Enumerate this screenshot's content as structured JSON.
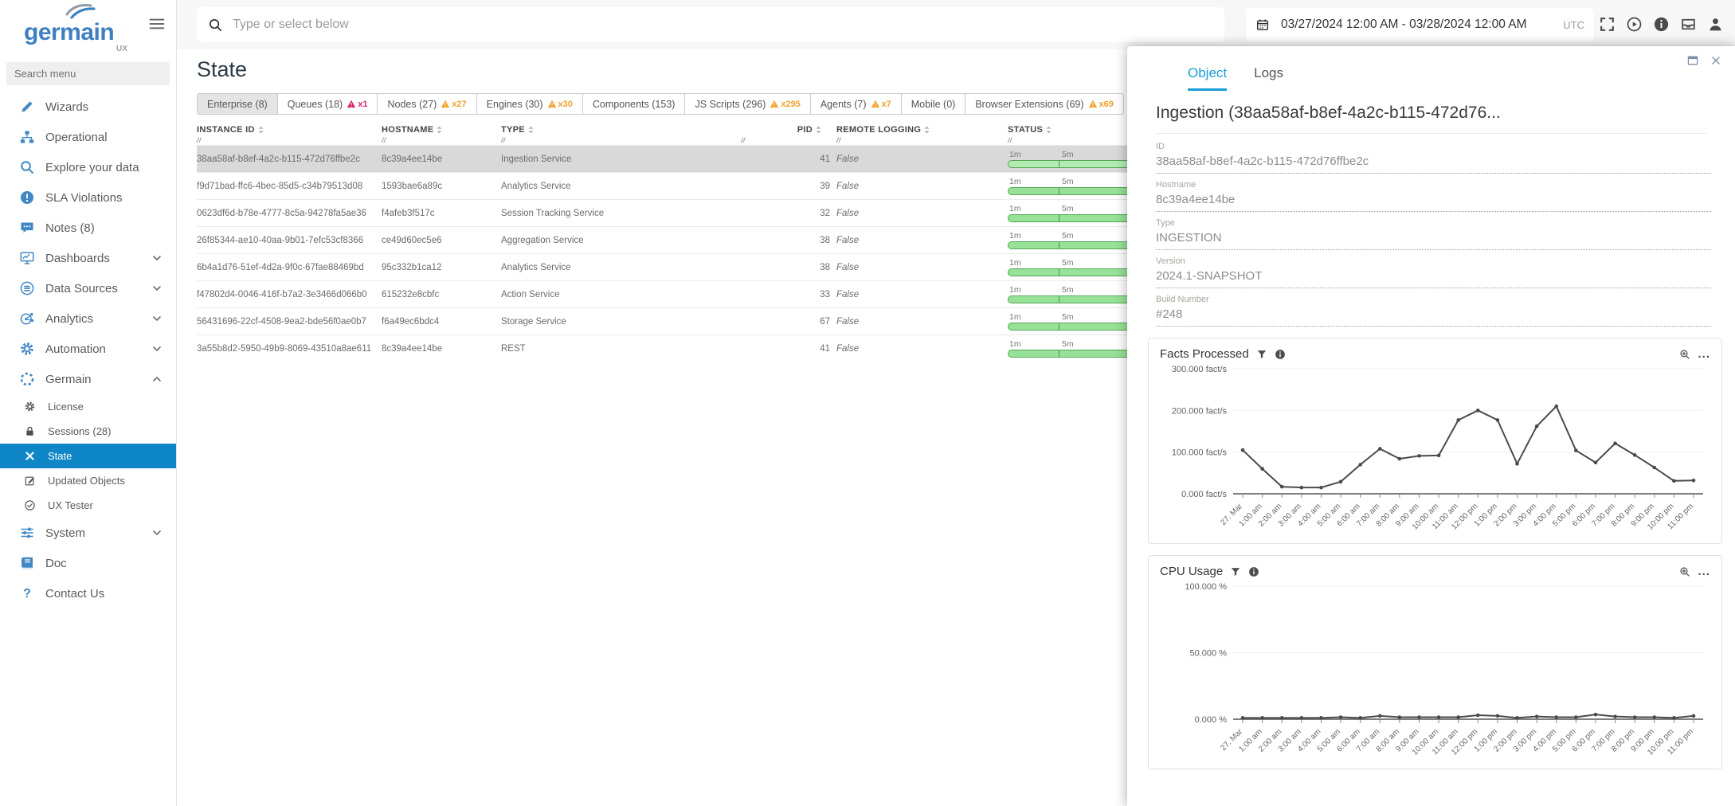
{
  "colors": {
    "accent": "#0f87c6",
    "panel_accent": "#1a9cd8",
    "sidebar_icon": "#4288c5",
    "warn_amber": "#f0a22e",
    "warn_crimson": "#d6256e",
    "bar_green_fill": "#97e297",
    "bar_green_border": "#55a555",
    "chart_line": "#4a4a4a"
  },
  "sidebar": {
    "logo_text": "germain",
    "logo_sub": "UX",
    "search_placeholder": "Search menu",
    "items": [
      {
        "label": "Wizards",
        "icon": "pencil-icon",
        "type": "parent"
      },
      {
        "label": "Operational",
        "icon": "sitemap-icon",
        "type": "parent"
      },
      {
        "label": "Explore your data",
        "icon": "search-icon",
        "type": "parent"
      },
      {
        "label": "SLA Violations",
        "icon": "alert-circle-icon",
        "type": "parent"
      },
      {
        "label": "Notes (8)",
        "icon": "chat-icon",
        "type": "parent"
      },
      {
        "label": "Dashboards",
        "icon": "monitor-icon",
        "type": "parent",
        "chevron": "down"
      },
      {
        "label": "Data Sources",
        "icon": "database-circle-icon",
        "type": "parent",
        "chevron": "down"
      },
      {
        "label": "Analytics",
        "icon": "nodes-icon",
        "type": "parent",
        "chevron": "down"
      },
      {
        "label": "Automation",
        "icon": "gear-icon",
        "type": "parent",
        "chevron": "down"
      },
      {
        "label": "Germain",
        "icon": "dashed-circle-icon",
        "type": "parent",
        "chevron": "up"
      },
      {
        "label": "License",
        "icon": "gear-icon",
        "type": "sub"
      },
      {
        "label": "Sessions (28)",
        "icon": "lock-icon",
        "type": "sub"
      },
      {
        "label": "State",
        "icon": "tools-cross-icon",
        "type": "sub",
        "selected": true
      },
      {
        "label": "Updated Objects",
        "icon": "edit-square-icon",
        "type": "sub"
      },
      {
        "label": "UX Tester",
        "icon": "check-circle-icon",
        "type": "sub"
      },
      {
        "label": "System",
        "icon": "sliders-icon",
        "type": "parent",
        "chevron": "down"
      },
      {
        "label": "Doc",
        "icon": "book-icon",
        "type": "parent"
      },
      {
        "label": "Contact Us",
        "icon": "question-icon",
        "type": "parent"
      }
    ]
  },
  "topbar": {
    "search_placeholder": "Type or select below",
    "date_range": "03/27/2024 12:00 AM - 03/28/2024 12:00 AM",
    "timezone": "UTC",
    "icons": [
      "fullscreen-icon",
      "play-circle-icon",
      "info-circle-icon",
      "inbox-icon",
      "user-icon"
    ]
  },
  "main": {
    "title": "State",
    "tabs": [
      {
        "label": "Enterprise (8)",
        "active": true
      },
      {
        "label": "Queues (18)",
        "warn": "x1",
        "warn_color": "crimson"
      },
      {
        "label": "Nodes (27)",
        "warn": "x27",
        "warn_color": "amber"
      },
      {
        "label": "Engines (30)",
        "warn": "x30",
        "warn_color": "amber"
      },
      {
        "label": "Components (153)"
      },
      {
        "label": "JS Scripts (296)",
        "warn": "x295",
        "warn_color": "amber"
      },
      {
        "label": "Agents (7)",
        "warn": "x7",
        "warn_color": "amber"
      },
      {
        "label": "Mobile (0)"
      },
      {
        "label": "Browser Extensions (69)",
        "warn": "x69",
        "warn_color": "amber"
      }
    ],
    "table": {
      "columns": [
        "INSTANCE ID",
        "HOSTNAME",
        "TYPE",
        "PID",
        "REMOTE LOGGING",
        "STATUS"
      ],
      "status_labels": [
        "1m",
        "5m"
      ],
      "rows": [
        {
          "instance_id": "38aa58af-b8ef-4a2c-b115-472d76ffbe2c",
          "hostname": "8c39a4ee14be",
          "type": "Ingestion Service",
          "pid": "41",
          "remote_logging": "False",
          "selected": true
        },
        {
          "instance_id": "f9d71bad-ffc6-4bec-85d5-c34b79513d08",
          "hostname": "1593bae6a89c",
          "type": "Analytics Service",
          "pid": "39",
          "remote_logging": "False"
        },
        {
          "instance_id": "0623df6d-b78e-4777-8c5a-94278fa5ae36",
          "hostname": "f4afeb3f517c",
          "type": "Session Tracking Service",
          "pid": "32",
          "remote_logging": "False"
        },
        {
          "instance_id": "26f85344-ae10-40aa-9b01-7efc53cf8366",
          "hostname": "ce49d60ec5e6",
          "type": "Aggregation Service",
          "pid": "38",
          "remote_logging": "False"
        },
        {
          "instance_id": "6b4a1d76-51ef-4d2a-9f0c-67fae88469bd",
          "hostname": "95c332b1ca12",
          "type": "Analytics Service",
          "pid": "38",
          "remote_logging": "False"
        },
        {
          "instance_id": "f47802d4-0046-416f-b7a2-3e3466d066b0",
          "hostname": "615232e8cbfc",
          "type": "Action Service",
          "pid": "33",
          "remote_logging": "False"
        },
        {
          "instance_id": "56431696-22cf-4508-9ea2-bde56f0ae0b7",
          "hostname": "f6a49ec6bdc4",
          "type": "Storage Service",
          "pid": "67",
          "remote_logging": "False"
        },
        {
          "instance_id": "3a55b8d2-5950-49b9-8069-43510a8ae611",
          "hostname": "8c39a4ee14be",
          "type": "REST",
          "pid": "41",
          "remote_logging": "False"
        }
      ]
    }
  },
  "panel": {
    "tabs": [
      {
        "label": "Object",
        "active": true
      },
      {
        "label": "Logs"
      }
    ],
    "title": "Ingestion (38aa58af-b8ef-4a2c-b115-472d76...",
    "fields": [
      {
        "label": "ID",
        "value": "38aa58af-b8ef-4a2c-b115-472d76ffbe2c"
      },
      {
        "label": "Hostname",
        "value": "8c39a4ee14be"
      },
      {
        "label": "Type",
        "value": "INGESTION"
      },
      {
        "label": "Version",
        "value": "2024.1-SNAPSHOT"
      },
      {
        "label": "Build Number",
        "value": "#248"
      }
    ]
  },
  "chart_data": [
    {
      "type": "line",
      "title": "Facts Processed",
      "ylabel": "fact/s",
      "ylim": [
        0,
        300
      ],
      "yticks": [
        {
          "v": 300,
          "label": "300.000 fact/s"
        },
        {
          "v": 200,
          "label": "200.000 fact/s"
        },
        {
          "v": 100,
          "label": "100.000 fact/s"
        },
        {
          "v": 0,
          "label": "0.000 fact/s"
        }
      ],
      "x": [
        "27. Mar",
        "1:00 am",
        "2:00 am",
        "3:00 am",
        "4:00 am",
        "5:00 am",
        "6:00 am",
        "7:00 am",
        "8:00 am",
        "9:00 am",
        "10:00 am",
        "11:00 am",
        "12:00 pm",
        "1:00 pm",
        "2:00 pm",
        "3:00 pm",
        "4:00 pm",
        "5:00 pm",
        "6:00 pm",
        "7:00 pm",
        "8:00 pm",
        "9:00 pm",
        "10:00 pm",
        "11:00 pm"
      ],
      "values": [
        105,
        60,
        17,
        15,
        15,
        29,
        70,
        108,
        84,
        91,
        92,
        177,
        200,
        177,
        72,
        162,
        210,
        104,
        75,
        121,
        93,
        63,
        31,
        32
      ],
      "grid": true,
      "legend": false
    },
    {
      "type": "line",
      "title": "CPU Usage",
      "ylabel": "%",
      "ylim": [
        0,
        100
      ],
      "yticks": [
        {
          "v": 100,
          "label": "100.000 %"
        },
        {
          "v": 50,
          "label": "50.000 %"
        },
        {
          "v": 0,
          "label": "0.000 %"
        }
      ],
      "x": [
        "27. Mar",
        "1:00 am",
        "2:00 am",
        "3:00 am",
        "4:00 am",
        "5:00 am",
        "6:00 am",
        "7:00 am",
        "8:00 am",
        "9:00 am",
        "10:00 am",
        "11:00 am",
        "12:00 pm",
        "1:00 pm",
        "2:00 pm",
        "3:00 pm",
        "4:00 pm",
        "5:00 pm",
        "6:00 pm",
        "7:00 pm",
        "8:00 pm",
        "9:00 pm",
        "10:00 pm",
        "11:00 pm"
      ],
      "values": [
        1,
        1,
        1,
        1,
        1,
        1.5,
        1,
        2.5,
        1.5,
        1.5,
        1.5,
        1.5,
        3,
        2.5,
        1,
        2,
        1.5,
        1.5,
        3.5,
        2,
        1.5,
        1.5,
        1,
        2.5
      ],
      "grid": true,
      "legend": false
    }
  ]
}
